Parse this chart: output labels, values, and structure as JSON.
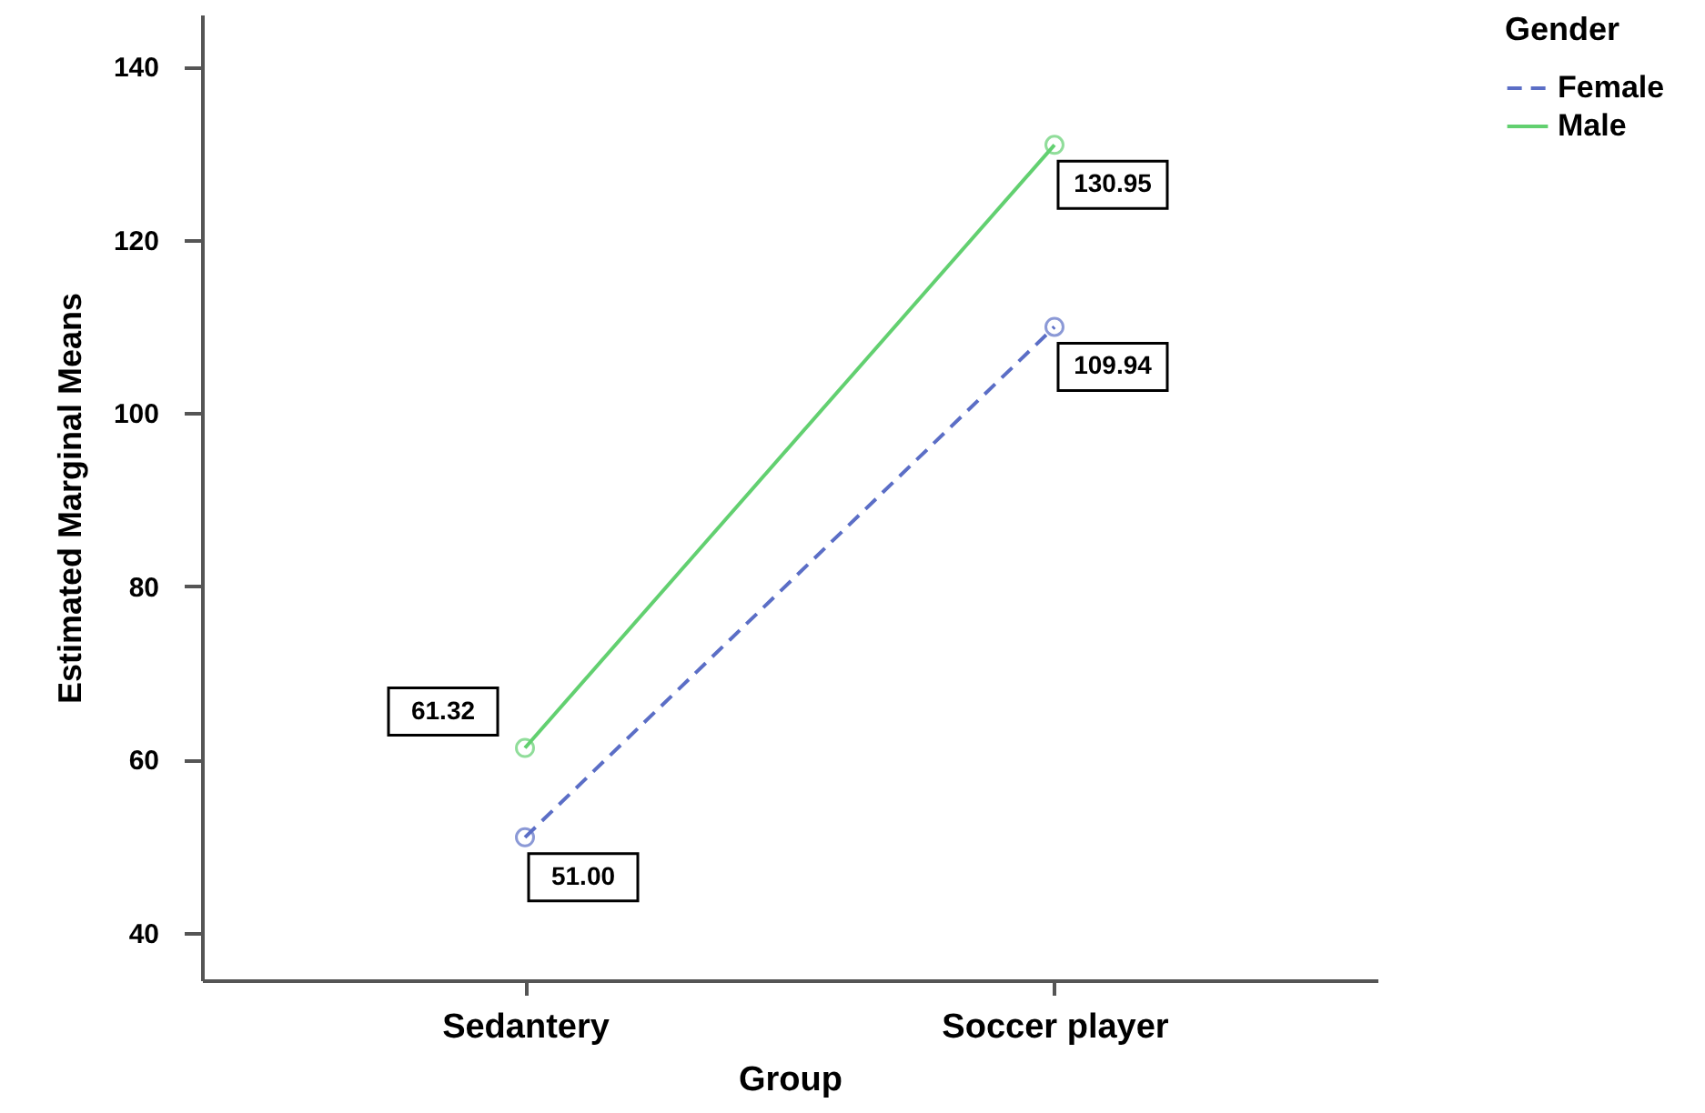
{
  "chart_data": {
    "type": "line",
    "xlabel": "Group",
    "ylabel": "Estimated Marginal Means",
    "legend_title": "Gender",
    "categories": [
      "Sedantery",
      "Soccer player"
    ],
    "series": [
      {
        "name": "Female",
        "color": "#5b6ec6",
        "line_style": "dashed",
        "values": [
          51.0,
          109.94
        ],
        "value_labels": [
          "51.00",
          "109.94"
        ]
      },
      {
        "name": "Male",
        "color": "#62d070",
        "line_style": "solid",
        "values": [
          61.32,
          130.95
        ],
        "value_labels": [
          "61.32",
          "130.95"
        ]
      }
    ],
    "ylim": [
      34.5,
      146
    ],
    "yticks": [
      40,
      60,
      80,
      100,
      120,
      140
    ],
    "grid": false,
    "legend": "top right",
    "marker": "circle"
  }
}
